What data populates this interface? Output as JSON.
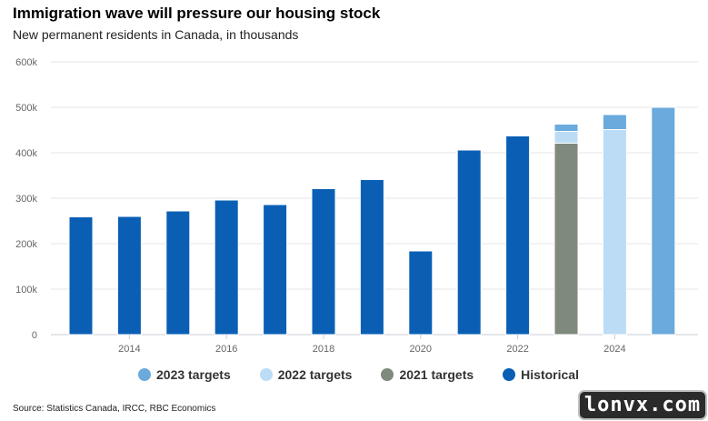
{
  "chart_data": {
    "type": "bar",
    "title": "Immigration wave will pressure our housing stock",
    "subtitle": "New permanent residents in Canada, in thousands",
    "x": [
      2013,
      2014,
      2015,
      2016,
      2017,
      2018,
      2019,
      2020,
      2021,
      2022,
      2023,
      2024,
      2025
    ],
    "xtick_labels": [
      "2014",
      "2016",
      "2018",
      "2020",
      "2022",
      "2024"
    ],
    "ytick_labels": [
      "0",
      "100k",
      "200k",
      "300k",
      "400k",
      "500k",
      "600k"
    ],
    "ylim": [
      0,
      600
    ],
    "grid": true,
    "stacked": true,
    "legend_position": "bottom",
    "series": [
      {
        "name": "2023 targets",
        "color": "#6aaadd",
        "values": [
          0,
          0,
          0,
          0,
          0,
          0,
          0,
          0,
          0,
          0,
          16,
          33,
          500
        ]
      },
      {
        "name": "2022 targets",
        "color": "#bcdcf6",
        "values": [
          0,
          0,
          0,
          0,
          0,
          0,
          0,
          0,
          0,
          0,
          26,
          451,
          0
        ]
      },
      {
        "name": "2021 targets",
        "color": "#7f8a7c",
        "values": [
          0,
          0,
          0,
          0,
          0,
          0,
          0,
          0,
          0,
          0,
          421,
          0,
          0
        ]
      },
      {
        "name": "Historical",
        "color": "#0a5fb5",
        "values": [
          259,
          260,
          272,
          296,
          286,
          321,
          341,
          184,
          406,
          437,
          0,
          0,
          0
        ]
      }
    ],
    "stack_order": [
      "Historical",
      "2021 targets",
      "2022 targets",
      "2023 targets"
    ],
    "legend_order": [
      "2023 targets",
      "2022 targets",
      "2021 targets",
      "Historical"
    ]
  },
  "source": "Source: Statistics Canada, IRCC, RBC Economics",
  "watermark": "lonvx.com"
}
